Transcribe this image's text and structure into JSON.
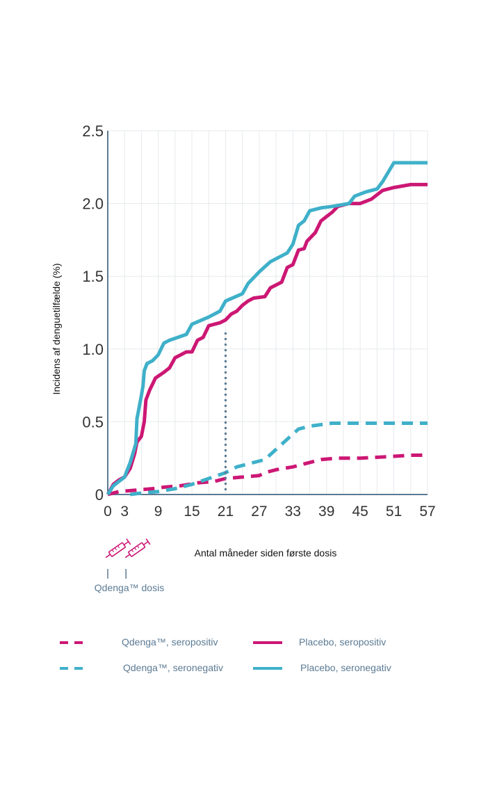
{
  "chart_data": {
    "type": "line",
    "ylabel": "Incidens af denguetilfælde (%)",
    "xlabel": "Antal måneder siden første dosis",
    "xlim": [
      0,
      57
    ],
    "ylim": [
      0,
      2.5
    ],
    "grid": true,
    "x_ticks": [
      0,
      3,
      9,
      15,
      21,
      27,
      33,
      39,
      45,
      51,
      57
    ],
    "y_ticks": [
      {
        "value": 0,
        "label": "0"
      },
      {
        "value": 0.5,
        "label": "0.5"
      },
      {
        "value": 1.0,
        "label": "1.0"
      },
      {
        "value": 1.5,
        "label": "1.5"
      },
      {
        "value": 2.0,
        "label": "2.0"
      },
      {
        "value": 2.5,
        "label": "2.5"
      }
    ],
    "reference_line_x": 21,
    "dose_label": "Qdenga™ dosis",
    "dose_months": [
      0,
      3
    ],
    "series": [
      {
        "name": "Qdenga™, seropositiv",
        "style": "dashed",
        "color": "#cc1774",
        "points": [
          [
            0,
            0
          ],
          [
            2,
            0.02
          ],
          [
            5,
            0.03
          ],
          [
            8,
            0.04
          ],
          [
            10,
            0.05
          ],
          [
            13,
            0.06
          ],
          [
            16,
            0.08
          ],
          [
            19,
            0.09
          ],
          [
            21,
            0.11
          ],
          [
            24,
            0.12
          ],
          [
            27,
            0.13
          ],
          [
            28,
            0.15
          ],
          [
            30,
            0.17
          ],
          [
            33,
            0.19
          ],
          [
            35,
            0.21
          ],
          [
            38,
            0.24
          ],
          [
            41,
            0.25
          ],
          [
            45,
            0.25
          ],
          [
            50,
            0.26
          ],
          [
            54,
            0.27
          ],
          [
            57,
            0.27
          ]
        ]
      },
      {
        "name": "Qdenga™, seronegativ",
        "style": "dashed",
        "color": "#3fb0c9",
        "points": [
          [
            4,
            0
          ],
          [
            6,
            0.01
          ],
          [
            9,
            0.02
          ],
          [
            12,
            0.04
          ],
          [
            15,
            0.07
          ],
          [
            18,
            0.11
          ],
          [
            21,
            0.15
          ],
          [
            23,
            0.19
          ],
          [
            26,
            0.22
          ],
          [
            28,
            0.24
          ],
          [
            30,
            0.31
          ],
          [
            32,
            0.38
          ],
          [
            34,
            0.45
          ],
          [
            36,
            0.47
          ],
          [
            40,
            0.49
          ],
          [
            45,
            0.49
          ],
          [
            52,
            0.49
          ],
          [
            57,
            0.49
          ]
        ]
      },
      {
        "name": "Placebo, seropositiv",
        "style": "solid",
        "color": "#cc1774",
        "points": [
          [
            0,
            0
          ],
          [
            1,
            0.07
          ],
          [
            2,
            0.1
          ],
          [
            3,
            0.12
          ],
          [
            4,
            0.18
          ],
          [
            4.8,
            0.28
          ],
          [
            5.2,
            0.36
          ],
          [
            6,
            0.4
          ],
          [
            6.5,
            0.5
          ],
          [
            6.8,
            0.65
          ],
          [
            7.5,
            0.72
          ],
          [
            8,
            0.76
          ],
          [
            8.5,
            0.8
          ],
          [
            10,
            0.84
          ],
          [
            11,
            0.87
          ],
          [
            12,
            0.94
          ],
          [
            14,
            0.98
          ],
          [
            15,
            0.98
          ],
          [
            16,
            1.06
          ],
          [
            17,
            1.08
          ],
          [
            18,
            1.16
          ],
          [
            20,
            1.18
          ],
          [
            21,
            1.2
          ],
          [
            22,
            1.24
          ],
          [
            23,
            1.26
          ],
          [
            24,
            1.3
          ],
          [
            25,
            1.33
          ],
          [
            26,
            1.35
          ],
          [
            28,
            1.36
          ],
          [
            29,
            1.42
          ],
          [
            31,
            1.46
          ],
          [
            32,
            1.56
          ],
          [
            33,
            1.58
          ],
          [
            34,
            1.68
          ],
          [
            35,
            1.69
          ],
          [
            35.5,
            1.74
          ],
          [
            37,
            1.8
          ],
          [
            38,
            1.88
          ],
          [
            39,
            1.91
          ],
          [
            40,
            1.94
          ],
          [
            41,
            1.98
          ],
          [
            43,
            2.0
          ],
          [
            45,
            2.0
          ],
          [
            47,
            2.03
          ],
          [
            49,
            2.09
          ],
          [
            51,
            2.11
          ],
          [
            54,
            2.13
          ],
          [
            57,
            2.13
          ]
        ]
      },
      {
        "name": "Placebo, seronegativ",
        "style": "solid",
        "color": "#3fb0c9",
        "points": [
          [
            0,
            0
          ],
          [
            1,
            0.06
          ],
          [
            3,
            0.12
          ],
          [
            4,
            0.22
          ],
          [
            5,
            0.35
          ],
          [
            5.2,
            0.52
          ],
          [
            5.6,
            0.6
          ],
          [
            6,
            0.68
          ],
          [
            6.3,
            0.75
          ],
          [
            6.5,
            0.85
          ],
          [
            7,
            0.9
          ],
          [
            8,
            0.92
          ],
          [
            9,
            0.96
          ],
          [
            10,
            1.04
          ],
          [
            11,
            1.06
          ],
          [
            14,
            1.1
          ],
          [
            15,
            1.17
          ],
          [
            18,
            1.22
          ],
          [
            20,
            1.26
          ],
          [
            21,
            1.33
          ],
          [
            24,
            1.38
          ],
          [
            25,
            1.45
          ],
          [
            27,
            1.53
          ],
          [
            29,
            1.6
          ],
          [
            32,
            1.66
          ],
          [
            33,
            1.72
          ],
          [
            34,
            1.85
          ],
          [
            35,
            1.88
          ],
          [
            36,
            1.95
          ],
          [
            38,
            1.97
          ],
          [
            40,
            1.98
          ],
          [
            43,
            2.0
          ],
          [
            44,
            2.05
          ],
          [
            46,
            2.08
          ],
          [
            48,
            2.1
          ],
          [
            49,
            2.15
          ],
          [
            51,
            2.28
          ],
          [
            54,
            2.28
          ],
          [
            57,
            2.28
          ]
        ]
      }
    ],
    "legend": [
      {
        "label": "Qdenga™, seropositiv",
        "series": 0
      },
      {
        "label": "Placebo, seropositiv",
        "series": 2
      },
      {
        "label": "Qdenga™, seronegativ",
        "series": 1
      },
      {
        "label": "Placebo, seronegativ",
        "series": 3
      }
    ]
  }
}
